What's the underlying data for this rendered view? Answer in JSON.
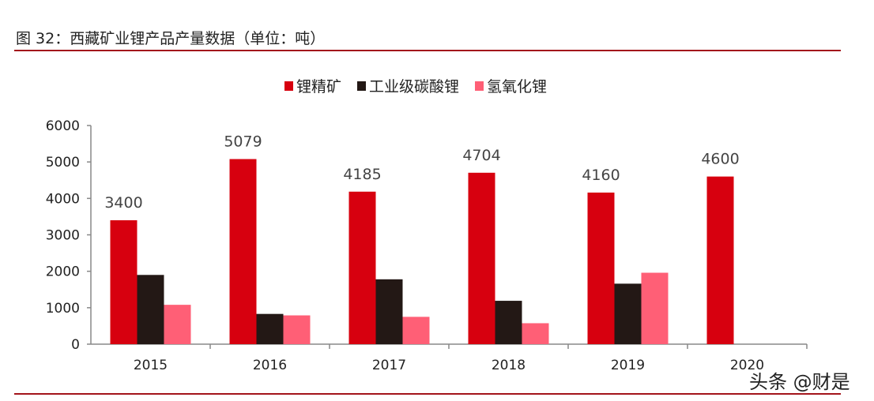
{
  "figure_title": "图 32：西藏矿业锂产品产量数据（单位：吨）",
  "watermark": "头条 @财是",
  "colors": {
    "rule": "#a3141b",
    "axis": "#888888"
  },
  "chart_data": {
    "type": "bar",
    "title": "",
    "xlabel": "",
    "ylabel": "",
    "ylim": [
      0,
      6000
    ],
    "yticks": [
      "0",
      "1000",
      "2000",
      "3000",
      "4000",
      "5000",
      "6000"
    ],
    "grid": false,
    "legend_position": "top",
    "categories": [
      "2015",
      "2016",
      "2017",
      "2018",
      "2019",
      "2020"
    ],
    "series": [
      {
        "name": "锂精矿",
        "color": "#d7000f",
        "values": [
          3400,
          5079,
          4185,
          4704,
          4160,
          4600
        ],
        "labels": [
          "3400",
          "5079",
          "4185",
          "4704",
          "4160",
          "4600"
        ]
      },
      {
        "name": "工业级碳酸锂",
        "color": "#231815",
        "values": [
          1900,
          830,
          1780,
          1190,
          1660,
          null
        ]
      },
      {
        "name": "氢氧化锂",
        "color": "#ff5f76",
        "values": [
          1080,
          790,
          750,
          575,
          1960,
          null
        ]
      }
    ]
  }
}
